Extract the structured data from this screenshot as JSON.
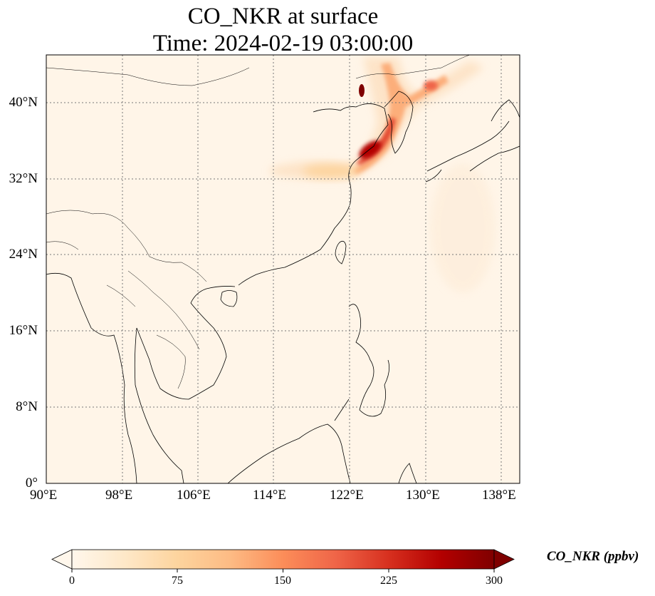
{
  "map": {
    "title_line1": "CO_NKR at surface",
    "title_line2": "Time: 2024-02-19 03:00:00",
    "variable": "CO_NKR",
    "units": "ppbv",
    "colormap": "OrRd",
    "extent": {
      "lon": [
        90,
        139
      ],
      "lat": [
        0,
        45
      ]
    },
    "lon_ticks": [
      {
        "value": 90,
        "label": "90°E"
      },
      {
        "value": 98,
        "label": "98°E"
      },
      {
        "value": 106,
        "label": "106°E"
      },
      {
        "value": 114,
        "label": "114°E"
      },
      {
        "value": 122,
        "label": "122°E"
      },
      {
        "value": 130,
        "label": "130°E"
      },
      {
        "value": 138,
        "label": "138°E"
      }
    ],
    "lat_ticks": [
      {
        "value": 0,
        "label": "0°"
      },
      {
        "value": 8,
        "label": "8°N"
      },
      {
        "value": 16,
        "label": "16°N"
      },
      {
        "value": 24,
        "label": "24°N"
      },
      {
        "value": 32,
        "label": "32°N"
      },
      {
        "value": 40,
        "label": "40°N"
      }
    ],
    "gridlines": true,
    "colorbar": {
      "title": "CO_NKR (ppbv)",
      "min": 0,
      "max": 300,
      "ticks": [
        {
          "value": 0,
          "label": "0"
        },
        {
          "value": 75,
          "label": "75"
        },
        {
          "value": 150,
          "label": "150"
        },
        {
          "value": 225,
          "label": "225"
        },
        {
          "value": 300,
          "label": "300"
        }
      ],
      "colors": [
        "#fff7ec",
        "#fee8c8",
        "#fdd49e",
        "#fdbb84",
        "#fc8d59",
        "#ef6548",
        "#d7301f",
        "#b30000",
        "#7f0000"
      ]
    }
  }
}
